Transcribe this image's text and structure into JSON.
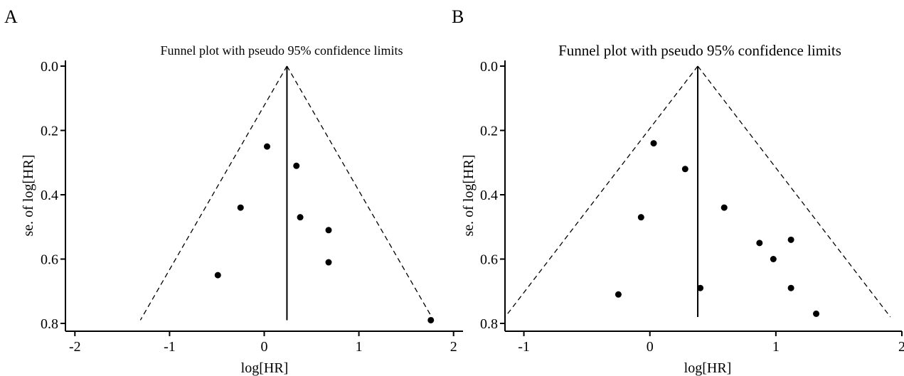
{
  "chart_data": [
    {
      "type": "scatter",
      "panel_label": "A",
      "title": "Funnel plot with pseudo 95% confidence limits",
      "xlabel": "log[HR]",
      "ylabel": "se. of log[HR]",
      "xlim": [
        -2.1,
        2.1
      ],
      "ylim": [
        0.0,
        0.8
      ],
      "y_reversed": true,
      "xticks": [
        -2,
        -1,
        0,
        1,
        2
      ],
      "yticks": [
        0.0,
        0.2,
        0.4,
        0.6,
        0.8
      ],
      "xtick_labels": [
        "-2",
        "-1",
        "0",
        "1",
        "2"
      ],
      "ytick_labels": [
        "0.0",
        "0.2",
        "0.4",
        "0.6",
        "0.8"
      ],
      "pooled_estimate": 0.24,
      "funnel_se_max": 0.79,
      "points": [
        {
          "x": 0.03,
          "y": 0.25
        },
        {
          "x": 0.34,
          "y": 0.31
        },
        {
          "x": -0.25,
          "y": 0.44
        },
        {
          "x": 0.38,
          "y": 0.47
        },
        {
          "x": 0.68,
          "y": 0.51
        },
        {
          "x": 0.68,
          "y": 0.61
        },
        {
          "x": -0.49,
          "y": 0.65
        },
        {
          "x": 1.76,
          "y": 0.79
        }
      ]
    },
    {
      "type": "scatter",
      "panel_label": "B",
      "title": "Funnel plot with pseudo 95% confidence limits",
      "xlabel": "log[HR]",
      "ylabel": "se. of log[HR]",
      "xlim": [
        -1.15,
        2.0
      ],
      "ylim": [
        0.0,
        0.8
      ],
      "y_reversed": true,
      "xticks": [
        -1,
        0,
        1,
        2
      ],
      "yticks": [
        0.0,
        0.2,
        0.4,
        0.6,
        0.8
      ],
      "xtick_labels": [
        "-1",
        "0",
        "1",
        "2"
      ],
      "ytick_labels": [
        "0.0",
        "0.2",
        "0.4",
        "0.6",
        "0.8"
      ],
      "pooled_estimate": 0.38,
      "funnel_se_max": 0.78,
      "points": [
        {
          "x": 0.03,
          "y": 0.24
        },
        {
          "x": 0.28,
          "y": 0.32
        },
        {
          "x": 0.59,
          "y": 0.44
        },
        {
          "x": -0.07,
          "y": 0.47
        },
        {
          "x": 1.12,
          "y": 0.54
        },
        {
          "x": 0.87,
          "y": 0.55
        },
        {
          "x": 0.98,
          "y": 0.6
        },
        {
          "x": 0.4,
          "y": 0.69
        },
        {
          "x": 1.12,
          "y": 0.69
        },
        {
          "x": -0.25,
          "y": 0.71
        },
        {
          "x": 1.32,
          "y": 0.77
        }
      ]
    }
  ]
}
